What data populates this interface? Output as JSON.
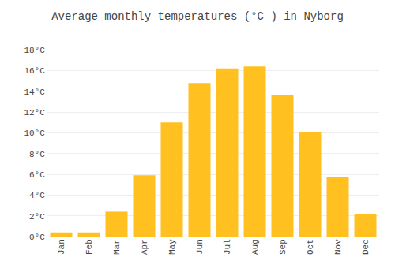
{
  "chart_data": {
    "type": "bar",
    "title": "Average monthly temperatures (°C ) in Nyborg",
    "categories": [
      "Jan",
      "Feb",
      "Mar",
      "Apr",
      "May",
      "Jun",
      "Jul",
      "Aug",
      "Sep",
      "Oct",
      "Nov",
      "Dec"
    ],
    "values": [
      0.4,
      0.4,
      2.4,
      5.9,
      11.0,
      14.8,
      16.2,
      16.4,
      13.6,
      10.1,
      5.7,
      2.2
    ],
    "color": "#FFC020",
    "ylim": [
      0,
      19
    ],
    "yticks": [
      {
        "value": 0,
        "label": "0°C"
      },
      {
        "value": 2,
        "label": "2°C"
      },
      {
        "value": 4,
        "label": "4°C"
      },
      {
        "value": 6,
        "label": "6°C"
      },
      {
        "value": 8,
        "label": "8°C"
      },
      {
        "value": 10,
        "label": "10°C"
      },
      {
        "value": 12,
        "label": "12°C"
      },
      {
        "value": 14,
        "label": "14°C"
      },
      {
        "value": 16,
        "label": "16°C"
      },
      {
        "value": 18,
        "label": "18°C"
      }
    ],
    "grid": true
  }
}
